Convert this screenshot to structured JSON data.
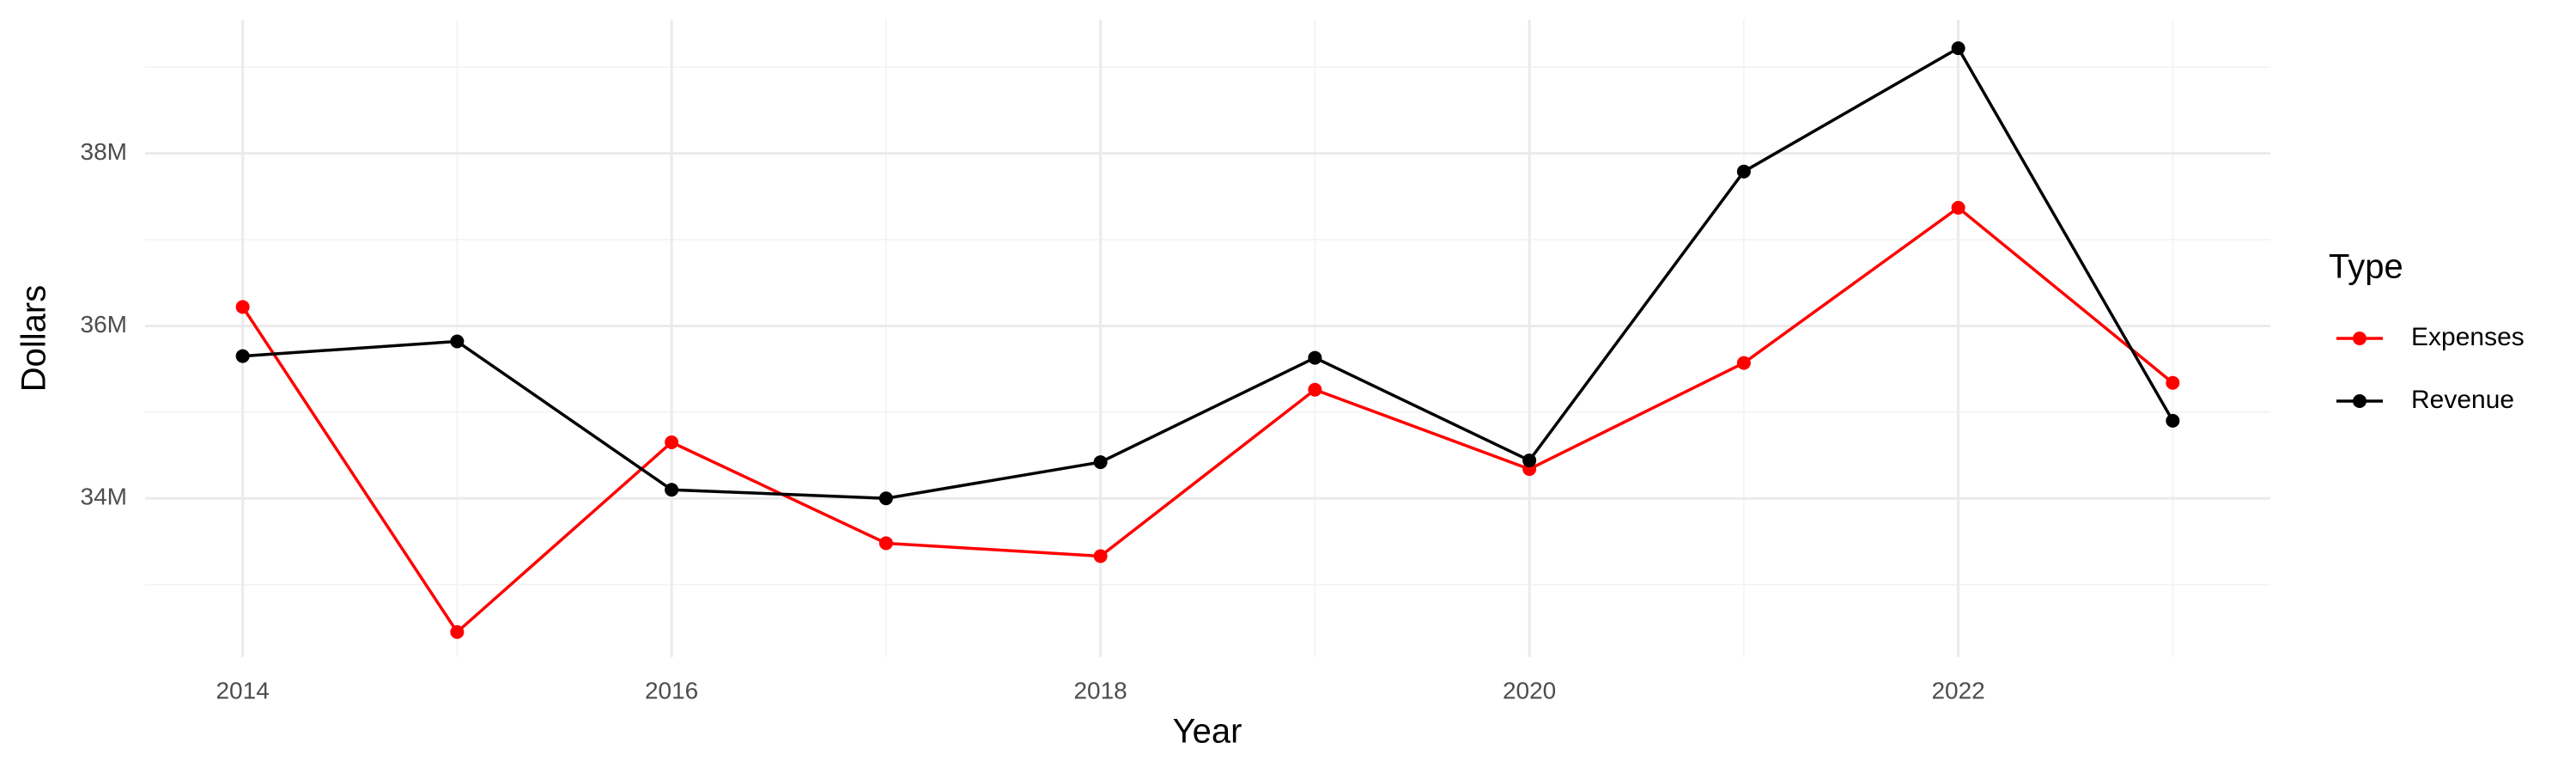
{
  "chart_data": {
    "type": "line",
    "x_label": "Year",
    "y_label": "Dollars",
    "legend_title": "Type",
    "x": [
      2014,
      2015,
      2016,
      2017,
      2018,
      2019,
      2020,
      2021,
      2022,
      2023
    ],
    "series": [
      {
        "name": "Expenses",
        "color": "#ff0000",
        "values": [
          36220000,
          32450000,
          34650000,
          33480000,
          33330000,
          35260000,
          34340000,
          35570000,
          37370000,
          35340000
        ]
      },
      {
        "name": "Revenue",
        "color": "#000000",
        "values": [
          35650000,
          35820000,
          34100000,
          34000000,
          34420000,
          35630000,
          34440000,
          37790000,
          39220000,
          34900000
        ]
      }
    ],
    "xlim": [
      2013.545,
      2023.455
    ],
    "xticks": [
      2014,
      2016,
      2018,
      2020,
      2022
    ],
    "ylim": [
      32160000,
      39550000
    ],
    "yticks": [
      {
        "value": 34000000,
        "label": "34M"
      },
      {
        "value": 36000000,
        "label": "36M"
      },
      {
        "value": 38000000,
        "label": "38M"
      }
    ],
    "grid": true,
    "legend": "right"
  }
}
